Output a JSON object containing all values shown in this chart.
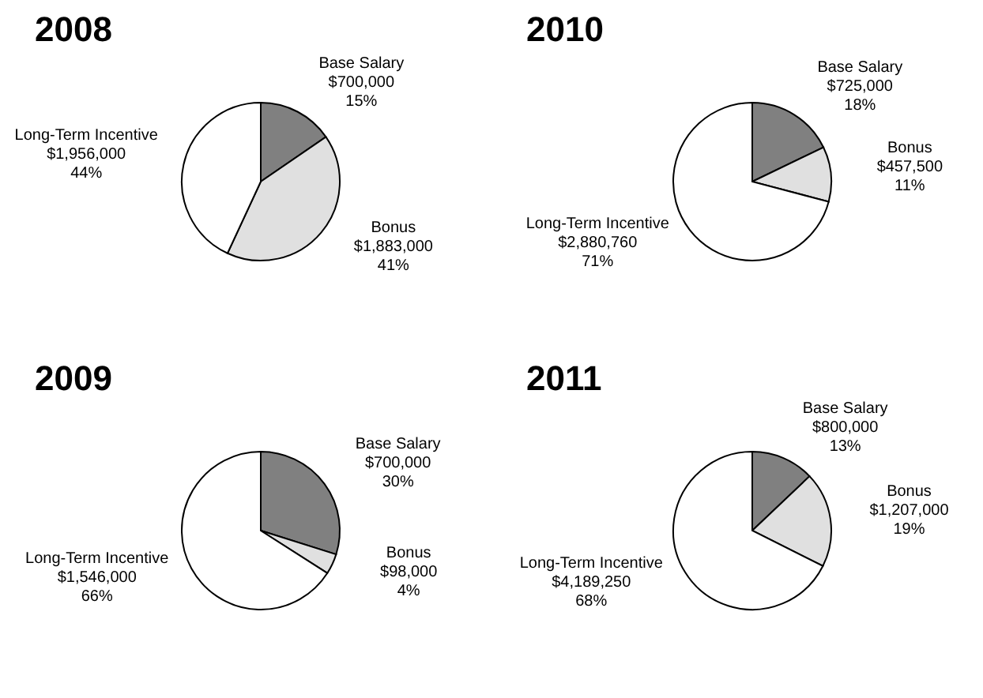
{
  "chart_data": [
    {
      "type": "pie",
      "title": "2008",
      "categories": [
        "Base Salary",
        "Bonus",
        "Long-Term Incentive"
      ],
      "values": [
        700000,
        1883000,
        1956000
      ],
      "colors": [
        "#808080",
        "#e0e0e0",
        "#ffffff"
      ],
      "value_labels": [
        "$700,000\n15%",
        "$1,883,000\n41%",
        "$1,956,000\n44%"
      ]
    },
    {
      "type": "pie",
      "title": "2010",
      "categories": [
        "Base Salary",
        "Bonus",
        "Long-Term Incentive"
      ],
      "values": [
        725000,
        457500,
        2880760
      ],
      "colors": [
        "#808080",
        "#e0e0e0",
        "#ffffff"
      ],
      "value_labels": [
        "$725,000\n18%",
        "$457,500\n11%",
        "$2,880,760\n71%"
      ]
    },
    {
      "type": "pie",
      "title": "2009",
      "categories": [
        "Base Salary",
        "Bonus",
        "Long-Term Incentive"
      ],
      "values": [
        700000,
        98000,
        1546000
      ],
      "colors": [
        "#808080",
        "#e0e0e0",
        "#ffffff"
      ],
      "value_labels": [
        "$700,000\n30%",
        "$98,000\n4%",
        "$1,546,000\n66%"
      ]
    },
    {
      "type": "pie",
      "title": "2011",
      "categories": [
        "Base Salary",
        "Bonus",
        "Long-Term Incentive"
      ],
      "values": [
        800000,
        1207000,
        4189250
      ],
      "colors": [
        "#808080",
        "#e0e0e0",
        "#ffffff"
      ],
      "value_labels": [
        "$800,000\n13%",
        "$1,207,000\n19%",
        "$4,189,250\n68%"
      ]
    }
  ]
}
